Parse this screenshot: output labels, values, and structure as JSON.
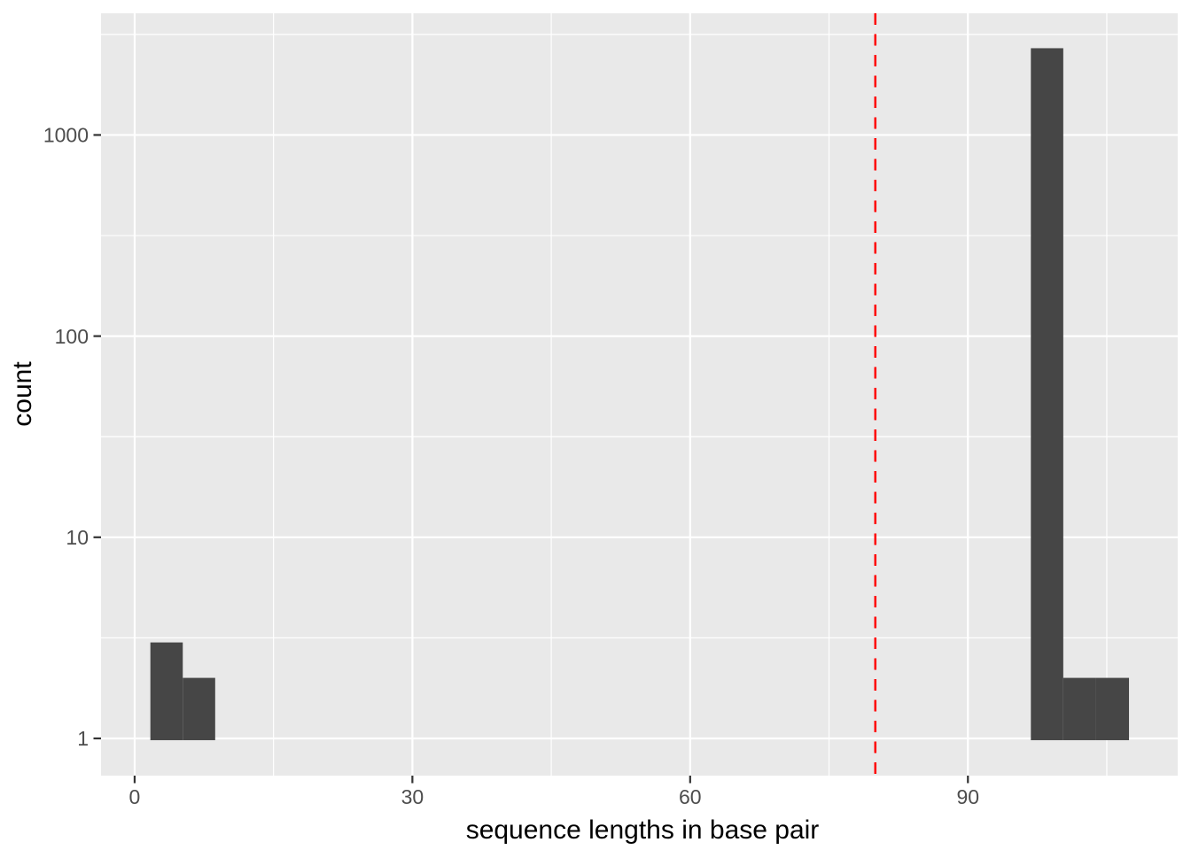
{
  "figure": {
    "background": "#FFFFFF"
  },
  "chart_data": {
    "type": "bar",
    "subtype": "histogram",
    "title": "",
    "xlabel": "sequence lengths in base pair",
    "ylabel": "count",
    "x_axis": {
      "scale": "linear",
      "domain": [
        -3.63,
        112.66
      ],
      "major_ticks": [
        0,
        30,
        60,
        90
      ],
      "minor_ticks": [
        15,
        45,
        75,
        105
      ],
      "tick_labels": [
        "0",
        "30",
        "60",
        "90"
      ]
    },
    "y_axis": {
      "scale": "log10",
      "domain_log10": [
        -0.185,
        3.605
      ],
      "major_ticks": [
        1,
        10,
        100,
        1000
      ],
      "minor_ticks": [
        3.162,
        31.62,
        316.2,
        3162
      ],
      "tick_labels": [
        "1",
        "10",
        "100",
        "1000"
      ]
    },
    "bars": [
      {
        "bin_start": 1.7,
        "bin_end": 5.2,
        "count": 3
      },
      {
        "bin_start": 5.2,
        "bin_end": 8.7,
        "count": 2
      },
      {
        "bin_start": 96.8,
        "bin_end": 100.3,
        "count": 2700
      },
      {
        "bin_start": 100.3,
        "bin_end": 103.8,
        "count": 2
      },
      {
        "bin_start": 103.8,
        "bin_end": 107.4,
        "count": 2
      }
    ],
    "reference_line": {
      "orientation": "vertical",
      "x": 80,
      "color": "#FF0000",
      "linestyle": "dashed"
    },
    "grid": "on",
    "legend_position": "none",
    "colors": {
      "bar_fill": "#464646",
      "panel_background": "#E9E9E9",
      "gridline": "#FFFFFF",
      "tick_mark": "#333333",
      "tick_label": "#4D4D4D",
      "axis_title": "#000000"
    }
  }
}
